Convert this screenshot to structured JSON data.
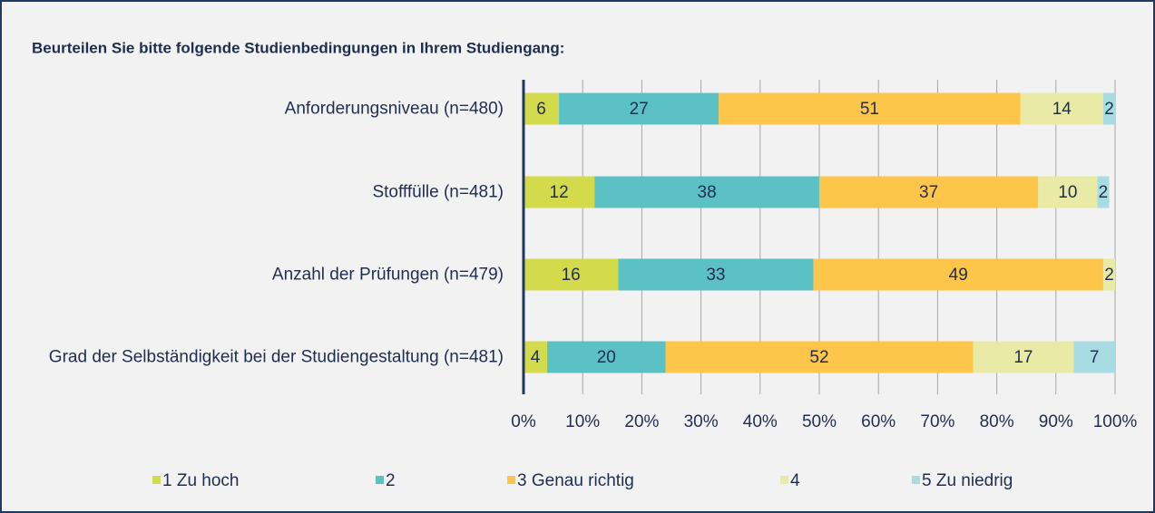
{
  "chart_data": {
    "type": "stacked_barh",
    "title": "Beurteilen Sie bitte folgende Studienbedingungen in Ihrem Studiengang:",
    "categories": [
      "Anforderungsniveau (n=480)",
      "Stofffülle (n=481)",
      "Anzahl der Prüfungen (n=479)",
      "Grad der Selbständigkeit bei der Studiengestaltung (n=481)"
    ],
    "series": [
      {
        "name": "1 Zu hoch",
        "color": "#d3da4b",
        "values": [
          6,
          12,
          16,
          4
        ]
      },
      {
        "name": "2",
        "color": "#5cc1c5",
        "values": [
          27,
          38,
          33,
          20
        ]
      },
      {
        "name": "3 Genau richtig",
        "color": "#fdc54a",
        "values": [
          51,
          37,
          49,
          52
        ]
      },
      {
        "name": "4",
        "color": "#e8eaa6",
        "values": [
          14,
          10,
          2,
          17
        ]
      },
      {
        "name": "5 Zu niedrig",
        "color": "#a8dce3",
        "values": [
          2,
          2,
          null,
          7
        ]
      }
    ],
    "xlim": [
      0,
      100
    ],
    "xticks": [
      {
        "value": 0,
        "label": "0%"
      },
      {
        "value": 10,
        "label": "10%"
      },
      {
        "value": 20,
        "label": "20%"
      },
      {
        "value": 30,
        "label": "30%"
      },
      {
        "value": 40,
        "label": "40%"
      },
      {
        "value": 50,
        "label": "50%"
      },
      {
        "value": 60,
        "label": "60%"
      },
      {
        "value": 70,
        "label": "70%"
      },
      {
        "value": 80,
        "label": "80%"
      },
      {
        "value": 90,
        "label": "90%"
      },
      {
        "value": 100,
        "label": "100%"
      }
    ],
    "grid": true,
    "legend": "bottom"
  }
}
